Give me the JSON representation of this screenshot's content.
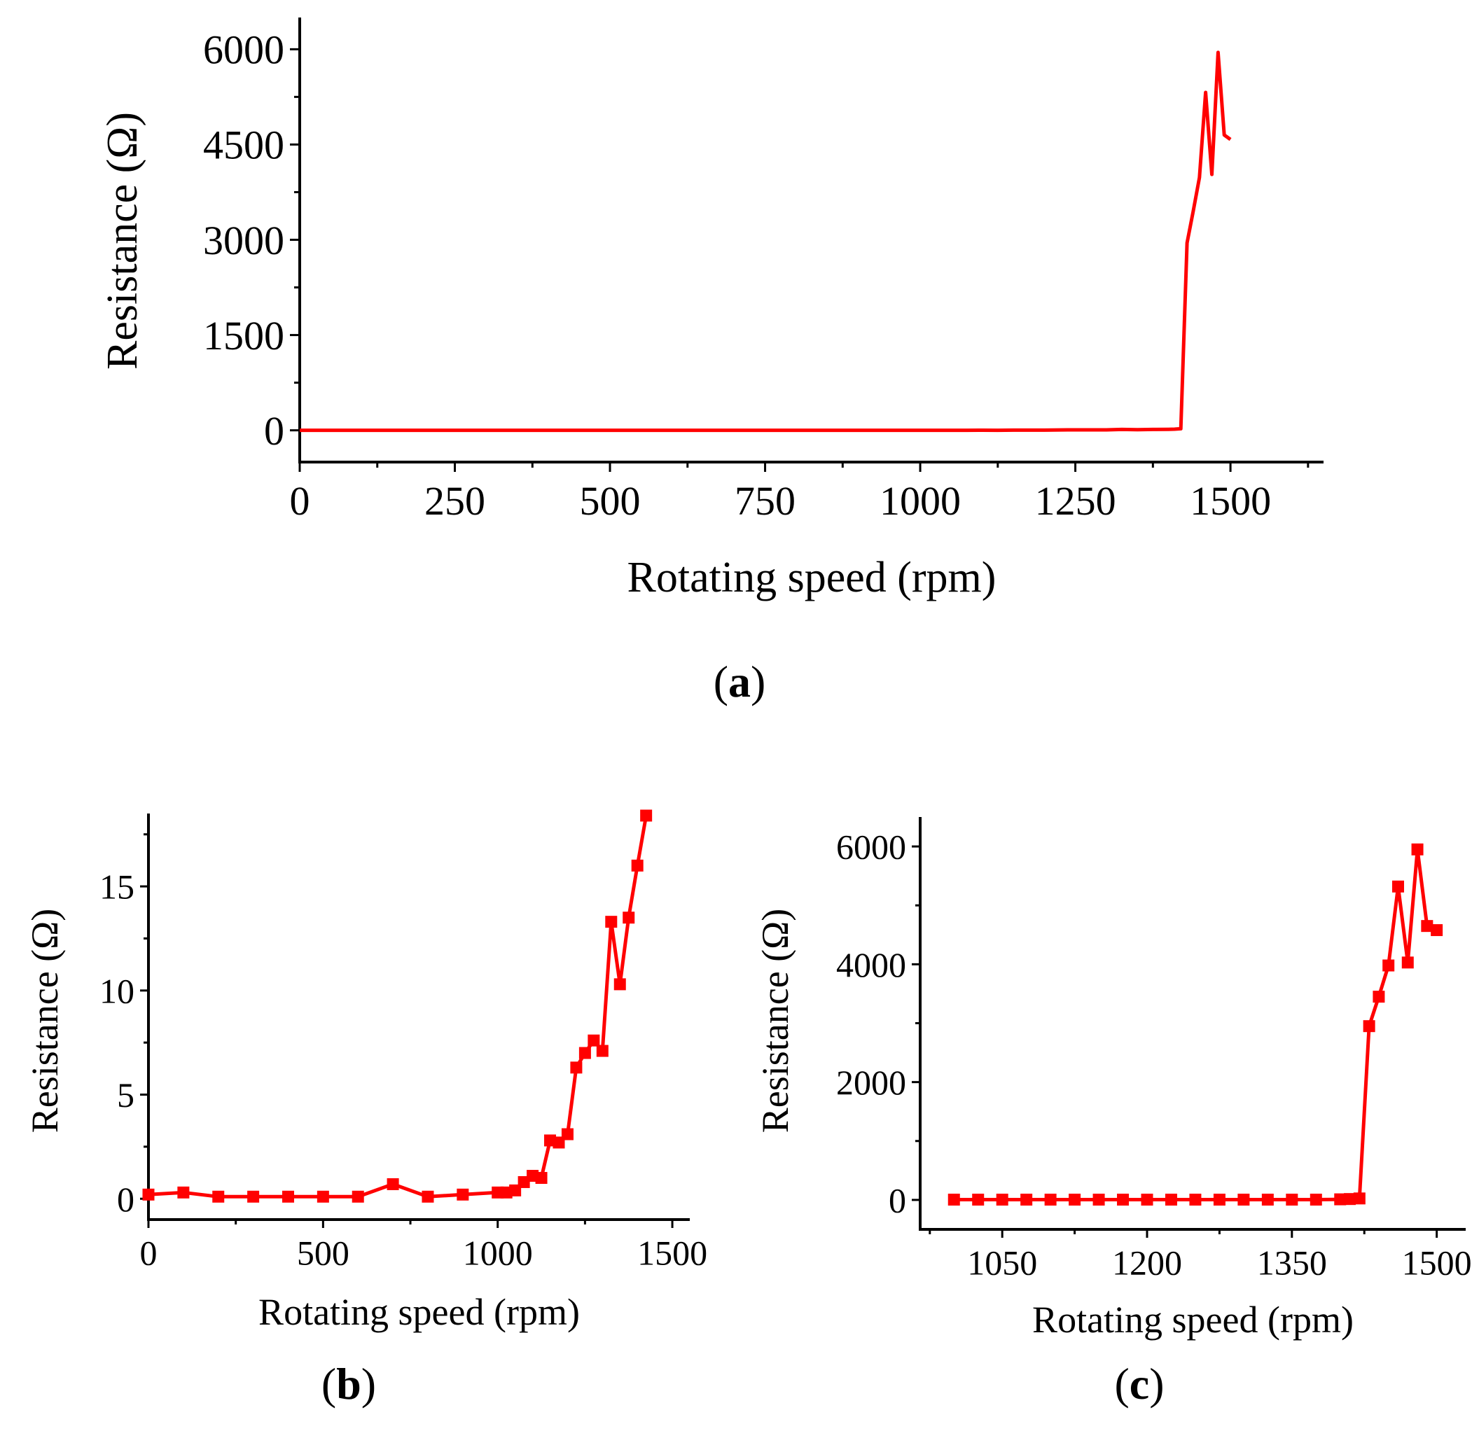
{
  "chart_data": [
    {
      "id": "a",
      "panel_letter": "a",
      "type": "line",
      "xlabel": "Rotating speed (rpm)",
      "ylabel": "Resistance (Ω)",
      "xlim": [
        0,
        1650
      ],
      "ylim": [
        -500,
        6500
      ],
      "xticks": [
        0,
        250,
        500,
        750,
        1000,
        1250,
        1500
      ],
      "yticks": [
        0,
        1500,
        3000,
        4500,
        6000
      ],
      "xtick_labels": [
        "0",
        "250",
        "500",
        "750",
        "1000",
        "1250",
        "1500"
      ],
      "ytick_labels": [
        "0",
        "1500",
        "3000",
        "4500",
        "6000"
      ],
      "series": [
        {
          "name": "Resistance",
          "color": "#ff0000",
          "markers": false,
          "x": [
            0,
            100,
            200,
            300,
            400,
            500,
            600,
            700,
            800,
            900,
            1000,
            1025,
            1050,
            1075,
            1100,
            1125,
            1150,
            1175,
            1200,
            1225,
            1250,
            1275,
            1300,
            1325,
            1350,
            1375,
            1400,
            1410,
            1420,
            1430,
            1440,
            1450,
            1460,
            1470,
            1480,
            1490,
            1500
          ],
          "y": [
            0.2,
            0.3,
            0.1,
            0.1,
            0.1,
            0.1,
            0.1,
            0.7,
            0.1,
            0.2,
            0.3,
            0.3,
            0.4,
            0.8,
            1.1,
            1.0,
            2.8,
            2.7,
            3.1,
            6.3,
            7.0,
            7.6,
            7.1,
            13.3,
            10.3,
            13.5,
            16.0,
            18.4,
            25,
            2950,
            3450,
            3980,
            5320,
            4030,
            5950,
            4650,
            4580
          ]
        }
      ]
    },
    {
      "id": "b",
      "panel_letter": "b",
      "type": "line",
      "xlabel": "Rotating speed (rpm)",
      "ylabel": "Resistance (Ω)",
      "xlim": [
        0,
        1550
      ],
      "ylim": [
        -1,
        18.5
      ],
      "xticks": [
        0,
        500,
        1000,
        1500
      ],
      "yticks": [
        0,
        5,
        10,
        15
      ],
      "xtick_labels": [
        "0",
        "500",
        "1000",
        "1500"
      ],
      "ytick_labels": [
        "0",
        "5",
        "10",
        "15"
      ],
      "series": [
        {
          "name": "Resistance",
          "color": "#ff0000",
          "markers": true,
          "x": [
            0,
            100,
            200,
            300,
            400,
            500,
            600,
            700,
            800,
            900,
            1000,
            1025,
            1050,
            1075,
            1100,
            1125,
            1150,
            1175,
            1200,
            1225,
            1250,
            1275,
            1300,
            1325,
            1350,
            1375,
            1400,
            1425
          ],
          "y": [
            0.2,
            0.3,
            0.1,
            0.1,
            0.1,
            0.1,
            0.1,
            0.7,
            0.1,
            0.2,
            0.3,
            0.3,
            0.4,
            0.8,
            1.1,
            1.0,
            2.8,
            2.7,
            3.1,
            6.3,
            7.0,
            7.6,
            7.1,
            13.3,
            10.3,
            13.5,
            16.0,
            18.4
          ]
        }
      ]
    },
    {
      "id": "c",
      "panel_letter": "c",
      "type": "line",
      "xlabel": "Rotating speed (rpm)",
      "ylabel": "Resistance (Ω)",
      "xlim": [
        965,
        1530
      ],
      "ylim": [
        -500,
        6500
      ],
      "xticks": [
        1050,
        1200,
        1350,
        1500
      ],
      "yticks": [
        0,
        2000,
        4000,
        6000
      ],
      "xtick_labels": [
        "1050",
        "1200",
        "1350",
        "1500"
      ],
      "ytick_labels": [
        "0",
        "2000",
        "4000",
        "6000"
      ],
      "series": [
        {
          "name": "Resistance",
          "color": "#ff0000",
          "markers": true,
          "x": [
            1000,
            1025,
            1050,
            1075,
            1100,
            1125,
            1150,
            1175,
            1200,
            1225,
            1250,
            1275,
            1300,
            1325,
            1350,
            1375,
            1400,
            1410,
            1420,
            1430,
            1440,
            1450,
            1460,
            1470,
            1480,
            1490,
            1500
          ],
          "y": [
            5,
            5,
            5,
            5,
            5,
            5,
            5,
            5,
            5,
            5,
            5,
            5,
            5,
            5,
            5,
            5,
            10,
            15,
            25,
            2950,
            3450,
            3980,
            5320,
            4030,
            5950,
            4650,
            4580
          ]
        }
      ]
    }
  ]
}
